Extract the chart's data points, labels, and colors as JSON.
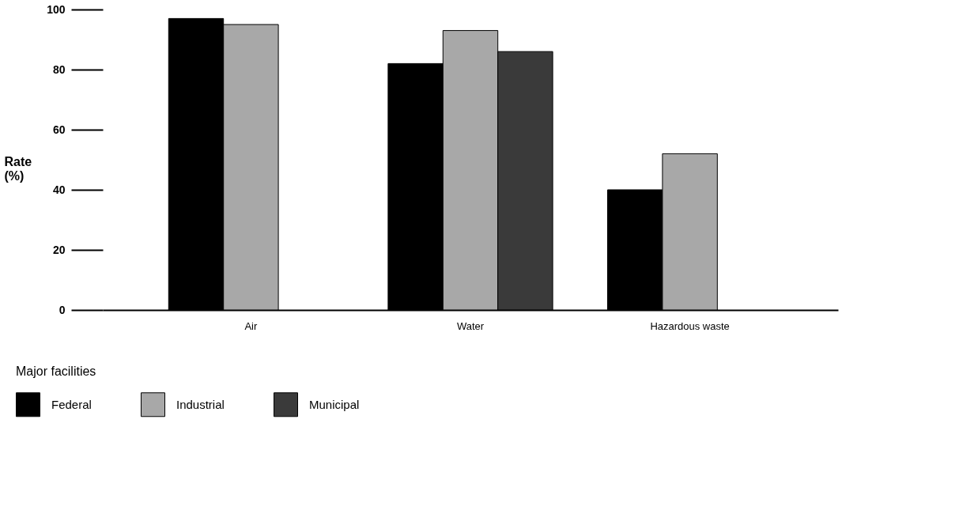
{
  "chart_data": {
    "type": "bar",
    "ylabel": "Rate (%)",
    "legend_title": "Major facilities",
    "categories": [
      "Air",
      "Water",
      "Hazardous waste"
    ],
    "series": [
      {
        "name": "Federal",
        "color": "#000000",
        "values": [
          97,
          82,
          40
        ]
      },
      {
        "name": "Industrial",
        "color": "#a8a8a8",
        "values": [
          95,
          93,
          52
        ]
      },
      {
        "name": "Municipal",
        "color": "#3a3a3a",
        "values": [
          null,
          86,
          null
        ]
      }
    ],
    "ylim": [
      0,
      100
    ],
    "yticks": [
      0,
      20,
      40,
      60,
      80,
      100
    ],
    "grid": false,
    "legend": "bottom left"
  }
}
